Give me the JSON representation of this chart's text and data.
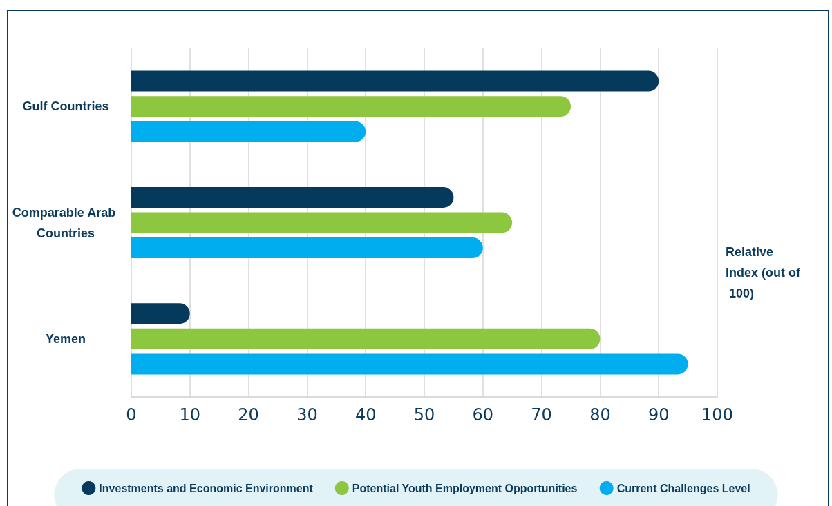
{
  "chart_data": {
    "type": "bar",
    "orientation": "horizontal",
    "xlabel": "Relative Index (out of 100)",
    "categories": [
      "Gulf Countries",
      "Comparable Arab Countries",
      "Yemen"
    ],
    "series": [
      {
        "name": "Investments and Economic Environment",
        "color": "#053a5c",
        "values": [
          90,
          55,
          10
        ]
      },
      {
        "name": "Potential Youth Employment Opportunities",
        "color": "#8dc63f",
        "values": [
          75,
          65,
          80
        ]
      },
      {
        "name": "Current Challenges Level",
        "color": "#00aeef",
        "values": [
          40,
          60,
          95
        ]
      }
    ],
    "xlim": [
      0,
      100
    ],
    "xticks": [
      0,
      10,
      20,
      30,
      40,
      50,
      60,
      70,
      80,
      90,
      100
    ],
    "grid": "x",
    "legend": "bottom"
  }
}
